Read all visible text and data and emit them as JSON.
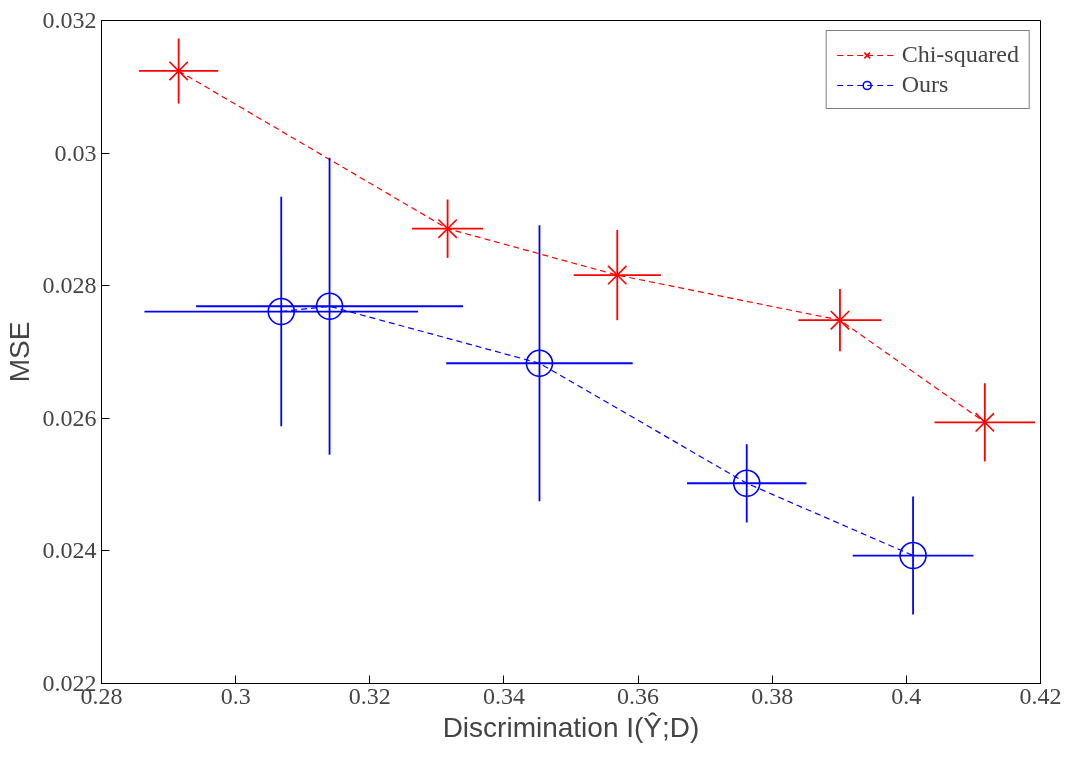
{
  "chart_data": {
    "type": "line",
    "xlabel": "Discrimination I(Ŷ;D)",
    "ylabel": "MSE",
    "xlim": [
      0.28,
      0.42
    ],
    "ylim": [
      0.022,
      0.032
    ],
    "xticks": [
      0.28,
      0.3,
      0.32,
      0.34,
      0.36,
      0.38,
      0.4,
      0.42
    ],
    "yticks": [
      0.022,
      0.024,
      0.026,
      0.028,
      0.03,
      0.032
    ],
    "grid": false,
    "legend": "top right",
    "line_style": "dashed",
    "series": [
      {
        "name": "Chi-squared",
        "marker": "cross",
        "color": "#ff0000",
        "x": [
          0.2915,
          0.3316,
          0.3569,
          0.3901,
          0.4117
        ],
        "values": [
          0.03124,
          0.02886,
          0.02816,
          0.02748,
          0.02594
        ],
        "errors": [
          0.00049,
          0.00044,
          0.00068,
          0.00047,
          0.00059
        ],
        "xerrors": [
          0.0059,
          0.0053,
          0.0065,
          0.0062,
          0.0075
        ]
      },
      {
        "name": "Ours",
        "marker": "circle",
        "color": "#0000ff",
        "x": [
          0.3068,
          0.314,
          0.3453,
          0.3762,
          0.401
        ],
        "values": [
          0.02761,
          0.02769,
          0.02683,
          0.02502,
          0.02393
        ],
        "errors": [
          0.00173,
          0.00224,
          0.00208,
          0.00059,
          0.00089
        ],
        "xerrors": [
          0.0204,
          0.0199,
          0.0139,
          0.0089,
          0.009
        ]
      }
    ]
  }
}
